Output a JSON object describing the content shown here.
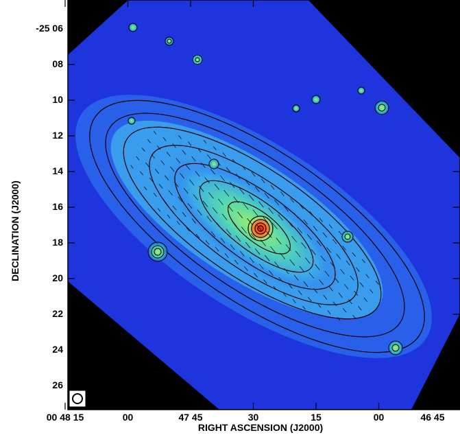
{
  "figure": {
    "x_axis_title": "RIGHT ASCENSION (J2000)",
    "y_axis_title": "DECLINATION (J2000)",
    "dec_ticks": [
      {
        "label": "-25 06",
        "dec_min": 6
      },
      {
        "label": "08",
        "dec_min": 8
      },
      {
        "label": "10",
        "dec_min": 10
      },
      {
        "label": "12",
        "dec_min": 12
      },
      {
        "label": "14",
        "dec_min": 14
      },
      {
        "label": "16",
        "dec_min": 16
      },
      {
        "label": "18",
        "dec_min": 18
      },
      {
        "label": "20",
        "dec_min": 20
      },
      {
        "label": "22",
        "dec_min": 22
      },
      {
        "label": "24",
        "dec_min": 24
      },
      {
        "label": "26",
        "dec_min": 26
      }
    ],
    "ra_ticks": [
      {
        "label": "00 48 15",
        "ra_sec_from_4745": 30
      },
      {
        "label": "00",
        "ra_sec_from_4745": 15
      },
      {
        "label": "47 45",
        "ra_sec_from_4745": 0
      },
      {
        "label": "30",
        "ra_sec_from_4745": -15
      },
      {
        "label": "15",
        "ra_sec_from_4745": -30
      },
      {
        "label": "00",
        "ra_sec_from_4745": -45
      },
      {
        "label": "46 45",
        "ra_sec_from_4745": -60
      }
    ],
    "colors": {
      "background": "#000000",
      "sky": "#1a2ee0",
      "halo": "#2a6cf0",
      "disk": "#3fb0e8",
      "inner": "#6fe0b0",
      "core": "#b8f040",
      "nucleus": "#ff2010",
      "contour": "#000000",
      "frame": "#000000"
    },
    "beam_symbol": "circle-beam-icon"
  }
}
